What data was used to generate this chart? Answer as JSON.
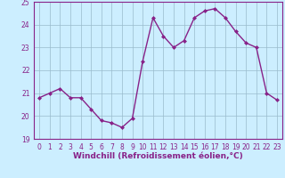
{
  "x": [
    0,
    1,
    2,
    3,
    4,
    5,
    6,
    7,
    8,
    9,
    10,
    11,
    12,
    13,
    14,
    15,
    16,
    17,
    18,
    19,
    20,
    21,
    22,
    23
  ],
  "y": [
    20.8,
    21.0,
    21.2,
    20.8,
    20.8,
    20.3,
    19.8,
    19.7,
    19.5,
    19.9,
    22.4,
    24.3,
    23.5,
    23.0,
    23.3,
    24.3,
    24.6,
    24.7,
    24.3,
    23.7,
    23.2,
    23.0,
    21.0,
    20.7
  ],
  "line_color": "#882288",
  "marker": "D",
  "marker_size": 2.0,
  "bg_color": "#cceeff",
  "grid_color": "#99bbcc",
  "xlabel": "Windchill (Refroidissement éolien,°C)",
  "ylabel": "",
  "ylim": [
    19,
    25
  ],
  "xlim": [
    -0.5,
    23.5
  ],
  "yticks": [
    19,
    20,
    21,
    22,
    23,
    24,
    25
  ],
  "xticks": [
    0,
    1,
    2,
    3,
    4,
    5,
    6,
    7,
    8,
    9,
    10,
    11,
    12,
    13,
    14,
    15,
    16,
    17,
    18,
    19,
    20,
    21,
    22,
    23
  ],
  "tick_label_size": 5.5,
  "xlabel_size": 6.5,
  "line_width": 1.0
}
